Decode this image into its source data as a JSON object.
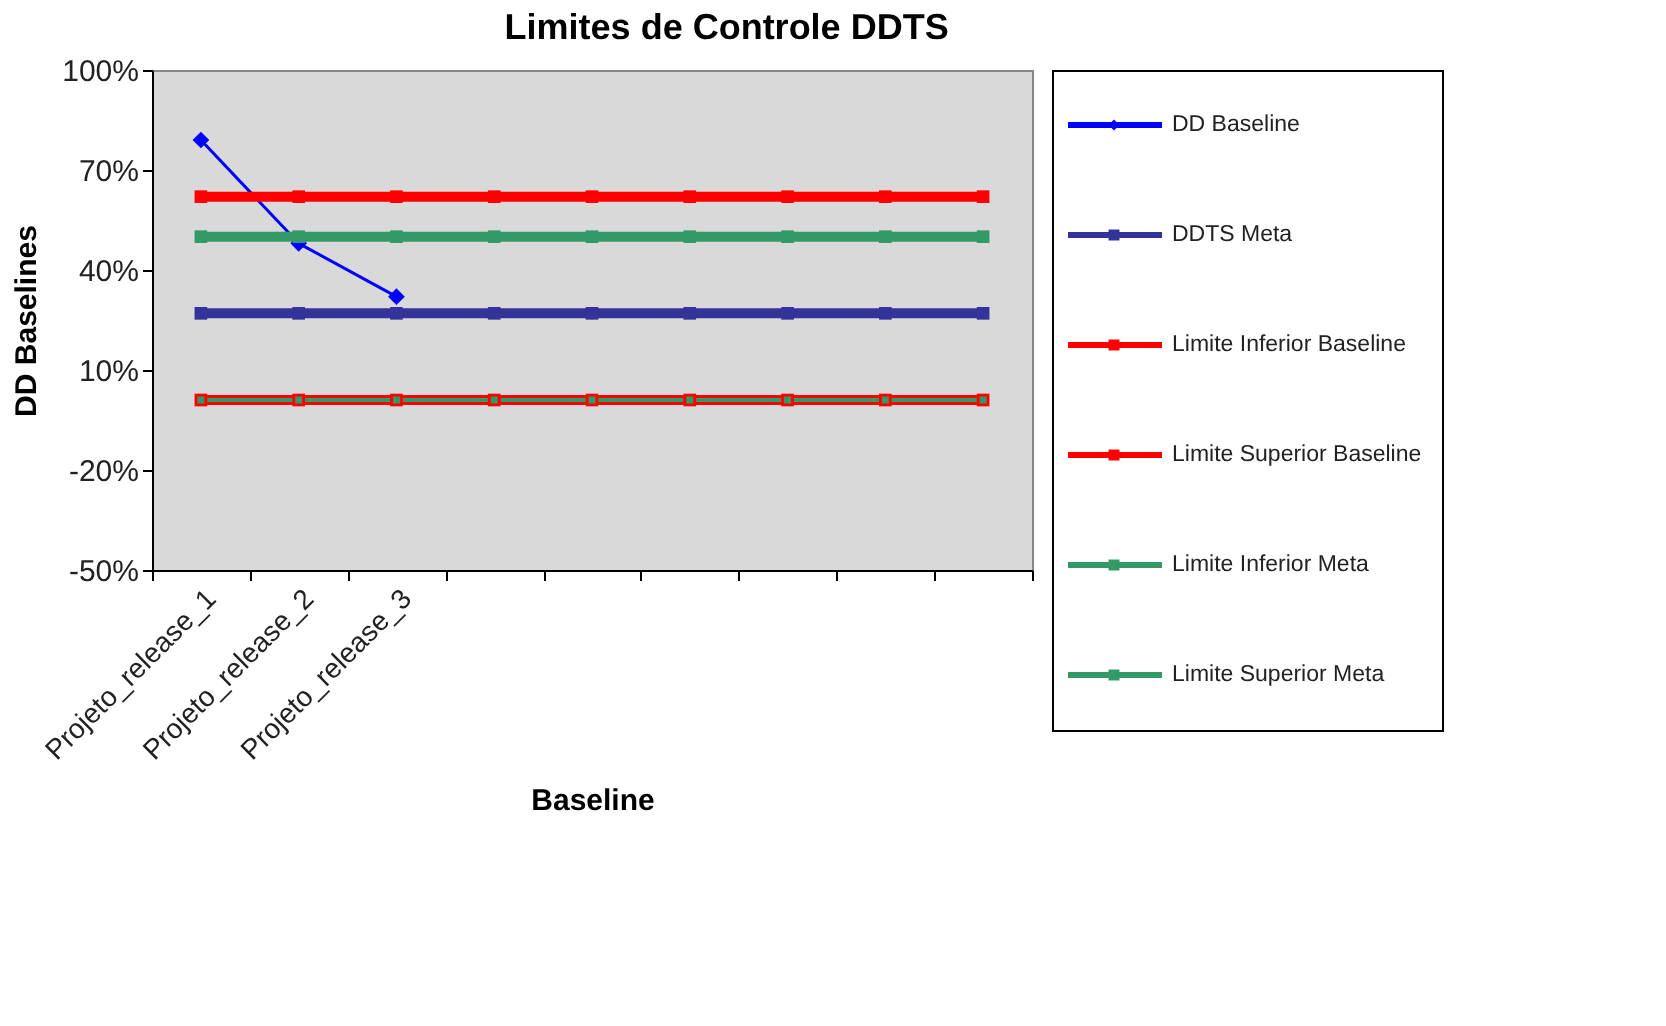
{
  "chart_data": {
    "type": "line",
    "title": "Limites de Controle DDTS",
    "xlabel": "Baseline",
    "ylabel": "DD Baselines",
    "categories": [
      "Projeto_release_1",
      "Projeto_release_2",
      "Projeto_release_3",
      null,
      null,
      null,
      null,
      null,
      null
    ],
    "ylim": [
      -50,
      100
    ],
    "yticks": [
      {
        "value": -50,
        "label": "-50%"
      },
      {
        "value": -20,
        "label": "-20%"
      },
      {
        "value": 10,
        "label": "10%"
      },
      {
        "value": 40,
        "label": "40%"
      },
      {
        "value": 70,
        "label": "70%"
      },
      {
        "value": 100,
        "label": "100%"
      }
    ],
    "grid": false,
    "legend": "right",
    "line_style": "solid",
    "series": [
      {
        "name": "DD Baseline",
        "color": "#0000ff",
        "marker": "diamond",
        "values": [
          79,
          48,
          32,
          null,
          null,
          null,
          null,
          null,
          null
        ]
      },
      {
        "name": "DDTS Meta",
        "color": "#333399",
        "marker": "square",
        "values": [
          27,
          27,
          27,
          27,
          27,
          27,
          27,
          27,
          27
        ]
      },
      {
        "name": "Limite Inferior Baseline",
        "color": "#ff0000",
        "marker": "square",
        "values": [
          1,
          1,
          1,
          1,
          1,
          1,
          1,
          1,
          1
        ]
      },
      {
        "name": "Limite Superior Baseline",
        "color": "#ff0000",
        "marker": "square",
        "values": [
          62,
          62,
          62,
          62,
          62,
          62,
          62,
          62,
          62
        ]
      },
      {
        "name": "Limite Inferior Meta",
        "color": "#339966",
        "marker": "square",
        "values": [
          1,
          1,
          1,
          1,
          1,
          1,
          1,
          1,
          1
        ]
      },
      {
        "name": "Limite Superior Meta",
        "color": "#339966",
        "marker": "square",
        "values": [
          50,
          50,
          50,
          50,
          50,
          50,
          50,
          50,
          50
        ]
      }
    ]
  }
}
